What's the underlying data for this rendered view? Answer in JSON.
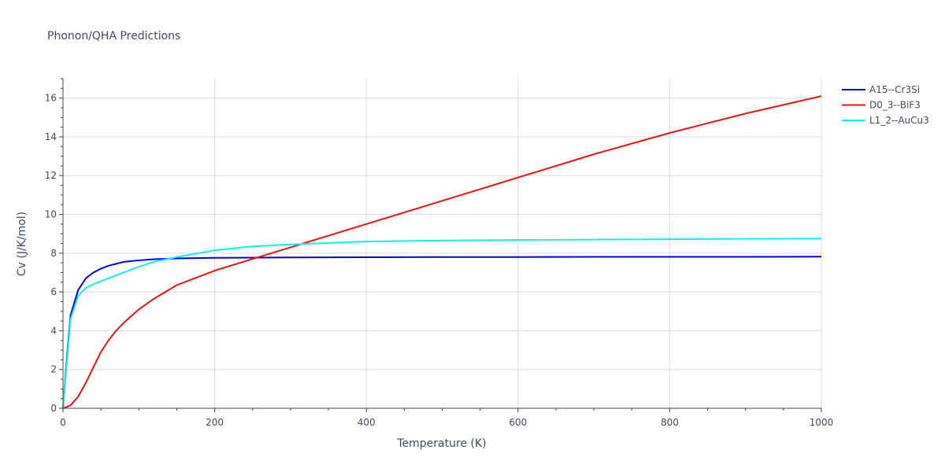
{
  "chart_data": {
    "type": "line",
    "title": "Phonon/QHA Predictions",
    "xlabel": "Temperature (K)",
    "ylabel": "Cv (J/K/mol)",
    "xlim": [
      0,
      1000
    ],
    "ylim": [
      0,
      17
    ],
    "x_ticks": [
      0,
      200,
      400,
      600,
      800,
      1000
    ],
    "y_ticks": [
      0,
      2,
      4,
      6,
      8,
      10,
      12,
      14,
      16
    ],
    "grid": true,
    "legend_position": "top-right",
    "series": [
      {
        "name": "A15--Cr3Si",
        "color": "#0000dd",
        "x": [
          0,
          5,
          10,
          20,
          30,
          40,
          50,
          60,
          70,
          80,
          100,
          120,
          150,
          200,
          300,
          400,
          500,
          600,
          700,
          800,
          900,
          1000
        ],
        "y": [
          0,
          2.5,
          4.8,
          6.1,
          6.7,
          7.0,
          7.2,
          7.35,
          7.45,
          7.55,
          7.63,
          7.69,
          7.73,
          7.76,
          7.78,
          7.79,
          7.8,
          7.8,
          7.81,
          7.81,
          7.81,
          7.82
        ]
      },
      {
        "name": "D0_3--BiF3",
        "color": "#ee1111",
        "x": [
          0,
          10,
          20,
          30,
          40,
          50,
          60,
          70,
          80,
          100,
          120,
          150,
          200,
          250,
          300,
          400,
          500,
          600,
          700,
          800,
          900,
          1000
        ],
        "y": [
          0,
          0.15,
          0.6,
          1.3,
          2.1,
          2.9,
          3.5,
          4.0,
          4.4,
          5.1,
          5.65,
          6.35,
          7.1,
          7.7,
          8.3,
          9.5,
          10.7,
          11.9,
          13.1,
          14.2,
          15.2,
          16.1
        ]
      },
      {
        "name": "L1_2--AuCu3",
        "color": "#11eeee",
        "x": [
          0,
          5,
          10,
          20,
          30,
          40,
          50,
          60,
          80,
          100,
          120,
          150,
          200,
          250,
          300,
          400,
          500,
          600,
          700,
          800,
          900,
          1000
        ],
        "y": [
          0,
          2.3,
          4.6,
          5.8,
          6.2,
          6.4,
          6.55,
          6.7,
          7.0,
          7.3,
          7.55,
          7.8,
          8.15,
          8.35,
          8.45,
          8.6,
          8.65,
          8.68,
          8.7,
          8.72,
          8.74,
          8.75
        ]
      }
    ]
  }
}
